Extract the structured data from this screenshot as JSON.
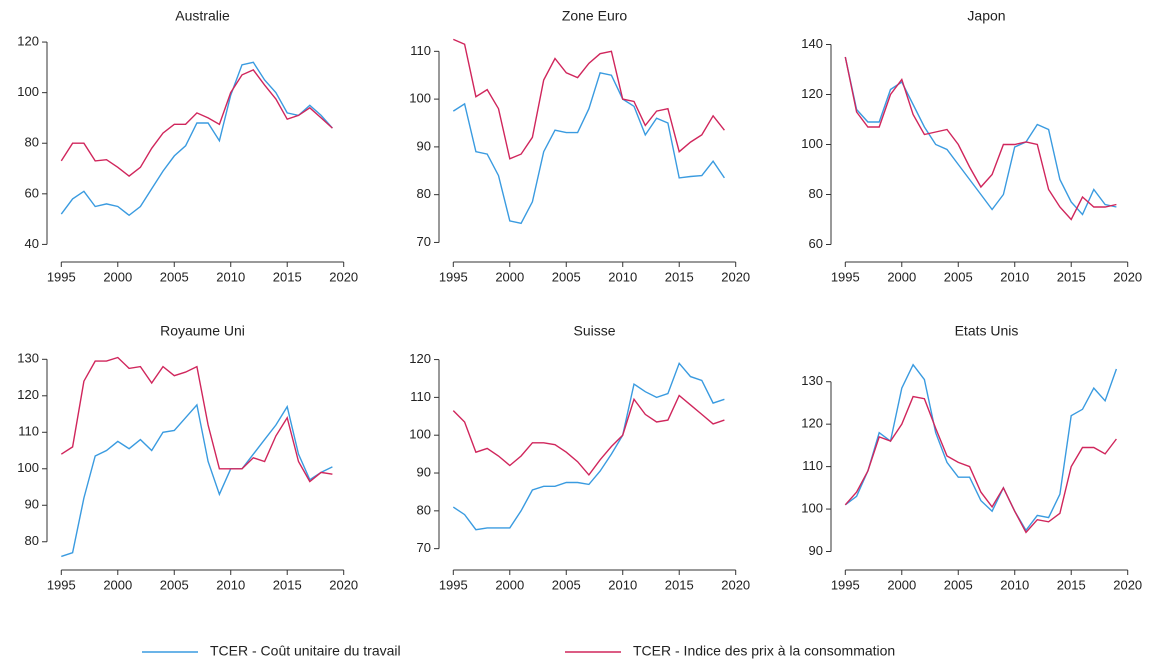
{
  "chart_data": [
    {
      "type": "line",
      "title": "Australie",
      "x": [
        1995,
        1996,
        1997,
        1998,
        1999,
        2000,
        2001,
        2002,
        2003,
        2004,
        2005,
        2006,
        2007,
        2008,
        2009,
        2010,
        2011,
        2012,
        2013,
        2014,
        2015,
        2016,
        2017,
        2018,
        2019
      ],
      "xlim": [
        1994,
        2021
      ],
      "xticks": [
        1995,
        2000,
        2005,
        2010,
        2015,
        2020
      ],
      "ylim": [
        37,
        122
      ],
      "yticks": [
        40,
        60,
        80,
        100,
        120
      ],
      "series": [
        {
          "color": "#3a9be0",
          "values": [
            52,
            58,
            61,
            55,
            56,
            55,
            51.5,
            55,
            62,
            69,
            75,
            79,
            88,
            88,
            81,
            99,
            111,
            112,
            105,
            100,
            92,
            91,
            95,
            91,
            86
          ]
        },
        {
          "color": "#d0265c",
          "values": [
            73,
            80,
            80,
            73,
            73.5,
            70.5,
            67,
            70.5,
            78,
            84,
            87.5,
            87.5,
            92,
            90,
            87.5,
            100,
            107,
            109,
            103,
            97.5,
            89.5,
            91,
            94,
            90,
            86
          ]
        }
      ]
    },
    {
      "type": "line",
      "title": "Zone Euro",
      "x": [
        1995,
        1996,
        1997,
        1998,
        1999,
        2000,
        2001,
        2002,
        2003,
        2004,
        2005,
        2006,
        2007,
        2008,
        2009,
        2010,
        2011,
        2012,
        2013,
        2014,
        2015,
        2016,
        2017,
        2018,
        2019
      ],
      "xlim": [
        1994,
        2021
      ],
      "xticks": [
        1995,
        2000,
        2005,
        2010,
        2015,
        2020
      ],
      "ylim": [
        68,
        113
      ],
      "yticks": [
        70,
        80,
        90,
        100,
        110
      ],
      "series": [
        {
          "color": "#3a9be0",
          "values": [
            97.5,
            99,
            89,
            88.5,
            84,
            74.5,
            74,
            78.5,
            89,
            93.5,
            93,
            93,
            98,
            105.5,
            105,
            100,
            98.5,
            92.5,
            96,
            95,
            83.5,
            83.8,
            84,
            87,
            83.5
          ]
        },
        {
          "color": "#d0265c",
          "values": [
            112.5,
            111.5,
            100.5,
            102,
            98,
            87.5,
            88.5,
            92,
            104,
            108.5,
            105.5,
            104.5,
            107.5,
            109.5,
            110,
            100,
            99.5,
            94.5,
            97.5,
            98,
            89,
            91,
            92.5,
            96.5,
            93.5
          ]
        }
      ]
    },
    {
      "type": "line",
      "title": "Japon",
      "x": [
        1995,
        1996,
        1997,
        1998,
        1999,
        2000,
        2001,
        2002,
        2003,
        2004,
        2005,
        2006,
        2007,
        2008,
        2009,
        2010,
        2011,
        2012,
        2013,
        2014,
        2015,
        2016,
        2017,
        2018,
        2019
      ],
      "xlim": [
        1994,
        2021
      ],
      "xticks": [
        1995,
        2000,
        2005,
        2010,
        2015,
        2020
      ],
      "ylim": [
        57,
        143
      ],
      "yticks": [
        60,
        80,
        100,
        120,
        140
      ],
      "series": [
        {
          "color": "#3a9be0",
          "values": [
            135,
            114,
            109,
            109,
            122,
            125,
            116,
            107,
            100,
            98,
            92,
            86,
            80,
            74,
            80,
            99,
            101,
            108,
            106,
            86,
            77,
            72,
            82,
            76,
            75
          ]
        },
        {
          "color": "#d0265c",
          "values": [
            135,
            113,
            107,
            107,
            120,
            126,
            112,
            104,
            105,
            106,
            100,
            91,
            83,
            88,
            100,
            100,
            101,
            100,
            82,
            75,
            70,
            79,
            75,
            75,
            76
          ]
        }
      ]
    },
    {
      "type": "line",
      "title": "Royaume Uni",
      "x": [
        1995,
        1996,
        1997,
        1998,
        1999,
        2000,
        2001,
        2002,
        2003,
        2004,
        2005,
        2006,
        2007,
        2008,
        2009,
        2010,
        2011,
        2012,
        2013,
        2014,
        2015,
        2016,
        2017,
        2018,
        2019
      ],
      "xlim": [
        1994,
        2021
      ],
      "xticks": [
        1995,
        2000,
        2005,
        2010,
        2015,
        2020
      ],
      "ylim": [
        75,
        132
      ],
      "yticks": [
        80,
        90,
        100,
        110,
        120,
        130
      ],
      "series": [
        {
          "color": "#3a9be0",
          "values": [
            76,
            77,
            92,
            103.5,
            105,
            107.5,
            105.5,
            108,
            105,
            110,
            110.5,
            114,
            117.5,
            102,
            93,
            100,
            100,
            104,
            108,
            112,
            117,
            104,
            97,
            99,
            100.5
          ]
        },
        {
          "color": "#d0265c",
          "values": [
            104,
            106,
            124,
            129.5,
            129.5,
            130.5,
            127.5,
            128,
            123.5,
            128,
            125.5,
            126.5,
            128,
            112,
            100,
            100,
            100,
            103,
            102,
            109,
            114,
            102,
            96.5,
            99,
            98.5
          ]
        }
      ]
    },
    {
      "type": "line",
      "title": "Suisse",
      "x": [
        1995,
        1996,
        1997,
        1998,
        1999,
        2000,
        2001,
        2002,
        2003,
        2004,
        2005,
        2006,
        2007,
        2008,
        2009,
        2010,
        2011,
        2012,
        2013,
        2014,
        2015,
        2016,
        2017,
        2018,
        2019
      ],
      "xlim": [
        1994,
        2021
      ],
      "xticks": [
        1995,
        2000,
        2005,
        2010,
        2015,
        2020
      ],
      "ylim": [
        67,
        122
      ],
      "yticks": [
        70,
        80,
        90,
        100,
        110,
        120
      ],
      "series": [
        {
          "color": "#3a9be0",
          "values": [
            81,
            79,
            75,
            75.5,
            75.5,
            75.5,
            80,
            85.5,
            86.5,
            86.5,
            87.5,
            87.5,
            87,
            90.5,
            95,
            100,
            113.5,
            111.5,
            110,
            111,
            119,
            115.5,
            114.5,
            108.5,
            109.5
          ]
        },
        {
          "color": "#d0265c",
          "values": [
            106.5,
            103.5,
            95.5,
            96.5,
            94.5,
            92,
            94.5,
            98,
            98,
            97.5,
            95.5,
            93,
            89.5,
            93.5,
            97,
            100,
            109.5,
            105.5,
            103.5,
            104,
            110.5,
            108,
            105.5,
            103,
            104
          ]
        }
      ]
    },
    {
      "type": "line",
      "title": "Etats Unis",
      "x": [
        1995,
        1996,
        1997,
        1998,
        1999,
        2000,
        2001,
        2002,
        2003,
        2004,
        2005,
        2006,
        2007,
        2008,
        2009,
        2010,
        2011,
        2012,
        2013,
        2014,
        2015,
        2016,
        2017,
        2018,
        2019
      ],
      "xlim": [
        1994,
        2021
      ],
      "xticks": [
        1995,
        2000,
        2005,
        2010,
        2015,
        2020
      ],
      "ylim": [
        88,
        137
      ],
      "yticks": [
        90,
        100,
        110,
        120,
        130
      ],
      "series": [
        {
          "color": "#3a9be0",
          "values": [
            101,
            103,
            109,
            118,
            116,
            128.5,
            134,
            130.5,
            118,
            111,
            107.5,
            107.5,
            102,
            99.5,
            105,
            99.5,
            95,
            98.5,
            98,
            103.5,
            122,
            123.5,
            128.5,
            125.5,
            133
          ]
        },
        {
          "color": "#d0265c",
          "values": [
            101,
            104,
            109,
            117,
            116,
            120,
            126.5,
            126,
            119,
            112.5,
            111,
            110,
            104,
            100.5,
            105,
            99.5,
            94.5,
            97.5,
            97,
            99,
            110,
            114.5,
            114.5,
            113,
            116.5
          ]
        }
      ]
    }
  ],
  "legend": {
    "items": [
      {
        "name": "TCER - Coût unitaire du travail",
        "color": "#3a9be0"
      },
      {
        "name": "TCER - Indice des prix à la consommation",
        "color": "#d0265c"
      }
    ]
  }
}
